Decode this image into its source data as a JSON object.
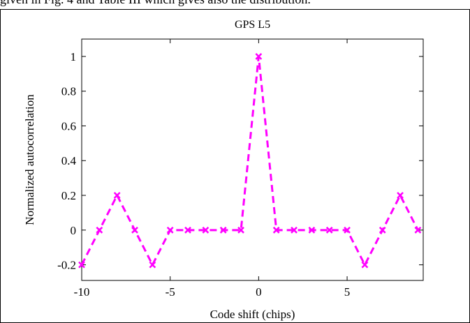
{
  "top_caption": "given in Fig. 4 and Table III which gives also the distribution.",
  "colors": {
    "series": "#ff00ff",
    "axes": "#000000",
    "background": "#ffffff"
  },
  "chart_data": {
    "type": "line",
    "title": "GPS L5",
    "xlabel": "Code shift (chips)",
    "ylabel": "Normalized autocorrelation",
    "xlim": [
      -10,
      9.3
    ],
    "ylim": [
      -0.29,
      1.1
    ],
    "grid": false,
    "line_style": "dashed",
    "marker": "x",
    "xticks": [
      -10,
      -5,
      0,
      5
    ],
    "yticks": [
      -0.2,
      0,
      0.2,
      0.4,
      0.6,
      0.8,
      1
    ],
    "xtick_labels": [
      "-10",
      "-5",
      "0",
      "5"
    ],
    "ytick_labels": [
      "-0.2",
      "0",
      "0.2",
      "0.4",
      "0.6",
      "0.8",
      "1"
    ],
    "series": [
      {
        "x": [
          -10,
          -9,
          -8,
          -7,
          -6,
          -5,
          -4,
          -3,
          -2,
          -1,
          0,
          1,
          2,
          3,
          4,
          5,
          6,
          7,
          8,
          9
        ],
        "values": [
          -0.2,
          0,
          0.2,
          0,
          -0.2,
          0,
          0,
          0,
          0,
          0,
          1,
          0,
          0,
          0,
          0,
          0,
          -0.2,
          0,
          0.2,
          0
        ]
      }
    ]
  }
}
